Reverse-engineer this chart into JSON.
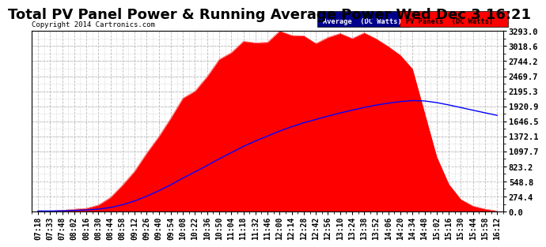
{
  "title": "Total PV Panel Power & Running Average Power Wed Dec 3 16:21",
  "copyright": "Copyright 2014 Cartronics.com",
  "legend_avg": "Average  (DC Watts)",
  "legend_pv": "PV Panels  (DC Watts)",
  "ymax": 3293.0,
  "yticks": [
    0.0,
    274.4,
    548.8,
    823.2,
    1097.7,
    1372.1,
    1646.5,
    1920.9,
    2195.3,
    2469.7,
    2744.2,
    3018.6,
    3293.0
  ],
  "ytick_labels": [
    "0.0",
    "274.4",
    "548.8",
    "823.2",
    "1097.7",
    "1372.1",
    "1646.5",
    "1920.9",
    "2195.3",
    "2469.7",
    "2744.2",
    "3018.6",
    "3293.0"
  ],
  "xtick_labels": [
    "07:18",
    "07:33",
    "07:48",
    "08:02",
    "08:16",
    "08:30",
    "08:44",
    "08:58",
    "09:12",
    "09:26",
    "09:40",
    "09:54",
    "10:08",
    "10:22",
    "10:36",
    "10:50",
    "11:04",
    "11:18",
    "11:32",
    "11:46",
    "12:00",
    "12:14",
    "12:28",
    "12:42",
    "12:56",
    "13:10",
    "13:24",
    "13:38",
    "13:52",
    "14:06",
    "14:20",
    "14:34",
    "14:48",
    "15:02",
    "15:16",
    "15:30",
    "15:44",
    "15:58",
    "16:12"
  ],
  "background_color": "#ffffff",
  "fill_color": "#ff0000",
  "line_color": "#0000ff",
  "grid_color": "#bbbbbb",
  "title_fontsize": 13,
  "axis_fontsize": 7,
  "legend_avg_bg": "#00008B",
  "legend_pv_bg": "#ff0000",
  "pv_data": [
    8,
    10,
    18,
    35,
    60,
    120,
    250,
    480,
    750,
    1050,
    1380,
    1720,
    2050,
    2350,
    2600,
    2820,
    2980,
    3080,
    3150,
    3200,
    3220,
    3230,
    3200,
    3180,
    3220,
    3240,
    3250,
    3260,
    3200,
    3100,
    2950,
    2700,
    1900,
    1100,
    550,
    250,
    130,
    60,
    15
  ]
}
